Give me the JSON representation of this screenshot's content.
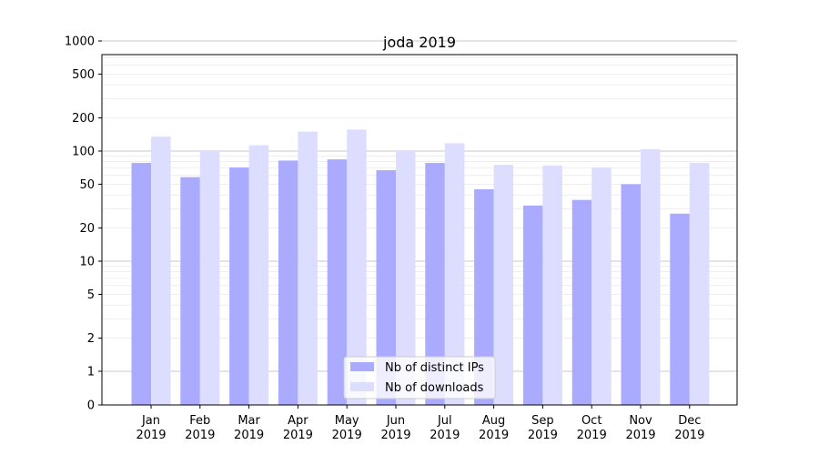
{
  "chart_data": {
    "type": "bar",
    "title": "joda 2019",
    "scale": "symlog",
    "ylim": [
      0,
      1200
    ],
    "grid": true,
    "legend_position": "bottom-center",
    "categories": [
      [
        "Jan",
        "2019"
      ],
      [
        "Feb",
        "2019"
      ],
      [
        "Mar",
        "2019"
      ],
      [
        "Apr",
        "2019"
      ],
      [
        "May",
        "2019"
      ],
      [
        "Jun",
        "2019"
      ],
      [
        "Jul",
        "2019"
      ],
      [
        "Aug",
        "2019"
      ],
      [
        "Sep",
        "2019"
      ],
      [
        "Oct",
        "2019"
      ],
      [
        "Nov",
        "2019"
      ],
      [
        "Dec",
        "2019"
      ]
    ],
    "y_ticks": [
      0,
      1,
      2,
      5,
      10,
      20,
      50,
      100,
      200,
      500,
      1000
    ],
    "series": [
      {
        "name": "Nb of distinct IPs",
        "color": "#aaaaff",
        "values": [
          78,
          58,
          71,
          82,
          84,
          67,
          78,
          45,
          32,
          36,
          50,
          27
        ]
      },
      {
        "name": "Nb of downloads",
        "color": "#ddddff",
        "values": [
          135,
          100,
          113,
          150,
          157,
          100,
          118,
          75,
          74,
          71,
          104,
          78
        ]
      }
    ]
  }
}
